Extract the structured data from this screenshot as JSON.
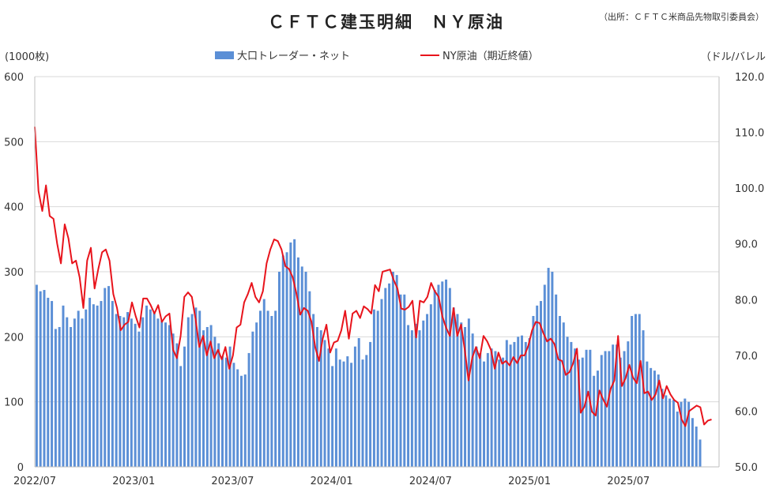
{
  "header": {
    "title": "ＣＦＴＣ建玉明細　ＮＹ原油",
    "source": "（出所：ＣＦＴＣ米商品先物取引委員会）"
  },
  "axes": {
    "left_unit": "(1000枚)",
    "right_unit": "（ドル/バレル"
  },
  "legend": {
    "bar_label": "大口トレーダー・ネット",
    "line_label": "NY原油（期近終値）"
  },
  "chart_data": {
    "type": "bar+line",
    "x_start": "2022/07",
    "x_ticks": [
      "2022/07",
      "2023/01",
      "2023/07",
      "2024/01",
      "2024/07",
      "2025/01",
      "2025/07"
    ],
    "y_left": {
      "range": [
        0,
        600
      ],
      "ticks": [
        0,
        100,
        200,
        300,
        400,
        500,
        600
      ]
    },
    "y_right": {
      "range": [
        50,
        120
      ],
      "ticks": [
        "50.0",
        "60.0",
        "70.0",
        "80.0",
        "90.0",
        "100.0",
        "110.0",
        "120.0"
      ]
    },
    "grid": true,
    "colors": {
      "bars": "#5b8fd6",
      "line": "#e8141c",
      "grid": "#d9d9d9"
    },
    "series": [
      {
        "name": "大口トレーダー・ネット",
        "axis": "left",
        "kind": "bar",
        "values": [
          280,
          270,
          272,
          260,
          255,
          212,
          215,
          248,
          230,
          215,
          228,
          240,
          228,
          242,
          260,
          250,
          248,
          255,
          275,
          278,
          255,
          235,
          232,
          230,
          238,
          228,
          220,
          208,
          230,
          248,
          242,
          238,
          228,
          225,
          222,
          218,
          205,
          190,
          155,
          185,
          230,
          235,
          245,
          240,
          210,
          215,
          218,
          200,
          190,
          170,
          168,
          185,
          160,
          150,
          140,
          142,
          175,
          208,
          222,
          240,
          258,
          240,
          232,
          240,
          300,
          325,
          330,
          345,
          350,
          322,
          308,
          300,
          270,
          235,
          215,
          210,
          195,
          182,
          155,
          182,
          165,
          162,
          170,
          160,
          185,
          198,
          165,
          172,
          192,
          242,
          240,
          258,
          275,
          282,
          300,
          295,
          265,
          265,
          218,
          210,
          220,
          210,
          225,
          235,
          250,
          272,
          280,
          285,
          288,
          275,
          245,
          235,
          222,
          215,
          228,
          205,
          185,
          175,
          162,
          175,
          182,
          178,
          165,
          168,
          195,
          188,
          192,
          200,
          202,
          192,
          198,
          232,
          248,
          255,
          280,
          306,
          300,
          265,
          232,
          222,
          200,
          192,
          182,
          165,
          168,
          180,
          180,
          140,
          148,
          172,
          178,
          178,
          188,
          188,
          168,
          178,
          193,
          232,
          235,
          235,
          210,
          162,
          152,
          148,
          142,
          120,
          110,
          105,
          103,
          85,
          100,
          105,
          100,
          75,
          62,
          42
        ]
      },
      {
        "name": "NY原油（期近終値）",
        "axis": "right",
        "kind": "line",
        "values": [
          111.0,
          99.5,
          95.9,
          100.5,
          95.0,
          94.5,
          90.0,
          86.5,
          93.5,
          91.0,
          86.5,
          87.0,
          84.0,
          78.5,
          87.0,
          89.3,
          82.0,
          85.5,
          88.5,
          89.0,
          87.0,
          81.0,
          78.5,
          74.5,
          75.5,
          76.0,
          79.5,
          77.0,
          75.0,
          80.2,
          80.2,
          79.0,
          77.5,
          79.0,
          76.0,
          77.0,
          77.5,
          71.0,
          69.5,
          73.5,
          80.5,
          81.3,
          80.5,
          76.5,
          71.5,
          73.5,
          70.0,
          72.5,
          69.5,
          71.0,
          69.3,
          71.5,
          67.6,
          70.0,
          75.0,
          75.5,
          79.5,
          81.0,
          83.0,
          80.5,
          79.5,
          81.5,
          86.5,
          89.0,
          90.8,
          90.5,
          89.0,
          86.0,
          85.5,
          84.0,
          81.0,
          77.3,
          78.5,
          78.0,
          76.0,
          71.5,
          69.0,
          73.0,
          75.5,
          70.5,
          72.3,
          72.6,
          74.5,
          78.0,
          73.0,
          77.5,
          78.0,
          76.7,
          78.8,
          78.3,
          77.5,
          82.6,
          81.5,
          85.0,
          85.2,
          85.4,
          83.5,
          82.0,
          78.4,
          78.2,
          78.7,
          79.8,
          73.2,
          79.8,
          79.5,
          80.5,
          83.0,
          81.5,
          80.5,
          77.0,
          75.0,
          73.5,
          78.5,
          73.5,
          75.5,
          71.0,
          65.5,
          69.6,
          71.5,
          69.5,
          73.5,
          72.5,
          71.0,
          67.6,
          70.5,
          68.5,
          69.0,
          68.2,
          69.7,
          68.6,
          70.0,
          70.0,
          71.8,
          74.5,
          76.0,
          75.8,
          74.0,
          72.5,
          73.0,
          72.0,
          69.3,
          69.0,
          66.5,
          67.0,
          68.6,
          71.2,
          59.7,
          60.8,
          63.5,
          59.9,
          59.2,
          63.7,
          62.1,
          60.8,
          64.0,
          65.5,
          73.5,
          64.5,
          65.9,
          68.3,
          66.0,
          65.0,
          69.0,
          63.2,
          63.5,
          62.0,
          63.0,
          65.5,
          62.3,
          64.5,
          63.0,
          62.0,
          61.5,
          58.5,
          57.3,
          60.0,
          60.5,
          61.0,
          60.7,
          57.6,
          58.3,
          58.5
        ]
      }
    ]
  }
}
